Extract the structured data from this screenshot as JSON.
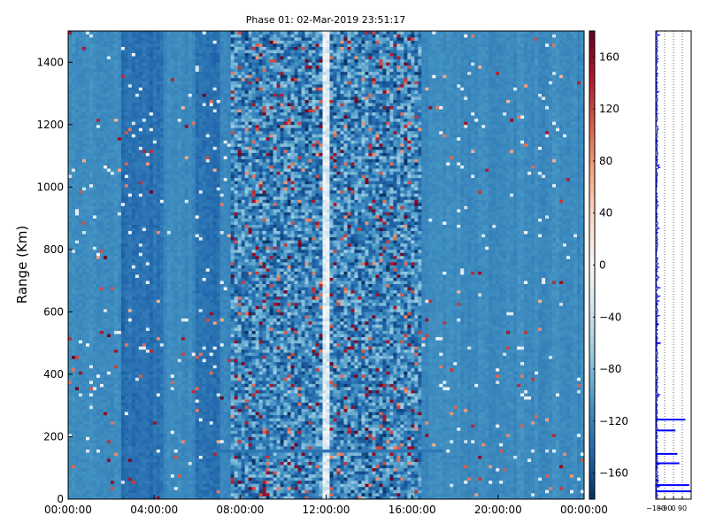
{
  "chart_data": [
    {
      "type": "heatmap",
      "title": "Phase 01: 02-Mar-2019 23:51:17",
      "xlabel": "",
      "ylabel": "Range (Km)",
      "xlim": [
        "00:00:00",
        "24:00:00"
      ],
      "ylim": [
        0,
        1500
      ],
      "x_ticks": [
        "00:00:00",
        "04:00:00",
        "08:00:00",
        "12:00:00",
        "16:00:00",
        "20:00:00",
        "00:00:00"
      ],
      "x_tick_hours": [
        0,
        4,
        8,
        12,
        16,
        20,
        24
      ],
      "y_ticks": [
        0,
        200,
        400,
        600,
        800,
        1000,
        1200,
        1400
      ],
      "colorbar": {
        "colormap": "RdBu_r",
        "range": [
          -180,
          180
        ],
        "ticks": [
          160,
          120,
          80,
          40,
          0,
          -40,
          -80,
          -120,
          -160
        ],
        "tick_labels": [
          "160",
          "120",
          "80",
          "40",
          "0",
          "−40",
          "−80",
          "−120",
          "−160"
        ],
        "colors": {
          "min": "#053061",
          "low": "#2166ac",
          "mid_low": "#4393c3",
          "light": "#92c5de",
          "pale": "#d1e5f0",
          "center": "#f7f7f7",
          "pale_red": "#fddbc7",
          "light_red": "#f4a582",
          "red": "#d6604d",
          "dark_red": "#b2182b",
          "max": "#67001f"
        }
      },
      "features": {
        "background_value": -115,
        "dark_band_hours": [
          [
            2.5,
            4.5
          ],
          [
            6.0,
            7.0
          ]
        ],
        "noisy_band_hours": [
          [
            7.5,
            16.5
          ]
        ],
        "brightest_stripe_hours": [
          11.8,
          12.1
        ],
        "horizontal_band_km": [
          150,
          160
        ],
        "horizontal_band_hours": [
          6.5,
          17.5
        ]
      }
    },
    {
      "type": "line",
      "title": "",
      "xlabel": "",
      "ylabel": "",
      "x_ticks": [
        "−180",
        "−90",
        "0",
        "90"
      ],
      "x_tick_values": [
        -180,
        -90,
        0,
        90
      ],
      "xlim": [
        -180,
        180
      ],
      "ylim": [
        0,
        1500
      ],
      "grid": "vertical dotted",
      "series": [
        {
          "color": "#0000ff",
          "baseline": -180,
          "spikes": [
            {
              "range_km": 25,
              "value": 180
            },
            {
              "range_km": 45,
              "value": 160
            },
            {
              "range_km": 60,
              "value": -150
            },
            {
              "range_km": 115,
              "value": 60
            },
            {
              "range_km": 145,
              "value": 40
            },
            {
              "range_km": 220,
              "value": 20
            },
            {
              "range_km": 255,
              "value": 120
            },
            {
              "range_km": 500,
              "value": -130
            },
            {
              "range_km": 560,
              "value": -150
            }
          ]
        }
      ]
    }
  ]
}
